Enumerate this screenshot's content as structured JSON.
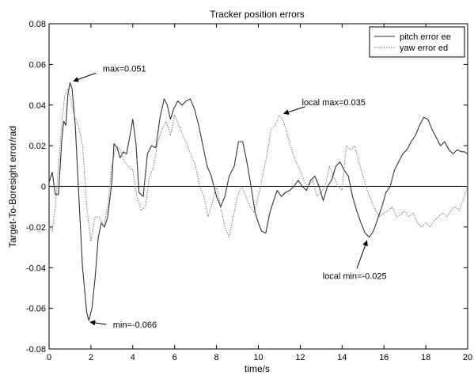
{
  "chart_data": {
    "type": "line",
    "title": "Tracker position errors",
    "xlabel": "time/s",
    "ylabel": "Target-To-Boresight error/rad",
    "xlim": [
      0,
      20
    ],
    "ylim": [
      -0.08,
      0.08
    ],
    "xticks": [
      "0",
      "2",
      "4",
      "6",
      "8",
      "10",
      "12",
      "14",
      "16",
      "18",
      "20"
    ],
    "yticks": [
      "-0.08",
      "-0.06",
      "-0.04",
      "-0.02",
      "0",
      "0.02",
      "0.04",
      "0.06",
      "0.08"
    ],
    "grid": false,
    "zero_line": true,
    "legend_position": "top-right",
    "series": [
      {
        "name": "pitch error ee",
        "style": "solid",
        "color": "#333333",
        "x": [
          0,
          0.15,
          0.3,
          0.45,
          0.6,
          0.7,
          0.8,
          0.9,
          1.0,
          1.1,
          1.25,
          1.4,
          1.6,
          1.8,
          1.9,
          2.05,
          2.2,
          2.35,
          2.5,
          2.65,
          2.8,
          3.0,
          3.1,
          3.25,
          3.4,
          3.55,
          3.7,
          3.85,
          4.0,
          4.15,
          4.3,
          4.5,
          4.7,
          4.9,
          5.1,
          5.3,
          5.5,
          5.65,
          5.8,
          5.95,
          6.15,
          6.35,
          6.55,
          6.75,
          6.95,
          7.15,
          7.35,
          7.55,
          7.75,
          8.0,
          8.2,
          8.4,
          8.6,
          8.85,
          9.05,
          9.25,
          9.45,
          9.65,
          9.85,
          10.0,
          10.15,
          10.35,
          10.55,
          10.7,
          10.9,
          11.1,
          11.3,
          11.5,
          11.7,
          11.9,
          12.1,
          12.3,
          12.5,
          12.7,
          12.9,
          13.1,
          13.3,
          13.5,
          13.7,
          13.9,
          14.1,
          14.3,
          14.5,
          14.7,
          14.9,
          15.1,
          15.3,
          15.5,
          15.7,
          15.9,
          16.1,
          16.3,
          16.5,
          16.7,
          16.9,
          17.1,
          17.3,
          17.5,
          17.7,
          17.9,
          18.1,
          18.3,
          18.5,
          18.7,
          18.9,
          19.1,
          19.3,
          19.5,
          19.7,
          19.85,
          20.0
        ],
        "y": [
          0.002,
          0.007,
          -0.004,
          -0.004,
          0.022,
          0.032,
          0.03,
          0.045,
          0.051,
          0.048,
          0.03,
          0.0,
          -0.04,
          -0.062,
          -0.066,
          -0.06,
          -0.045,
          -0.025,
          -0.018,
          -0.02,
          -0.015,
          0.002,
          0.021,
          0.019,
          0.014,
          0.017,
          0.016,
          0.024,
          0.033,
          0.021,
          -0.003,
          -0.005,
          0.016,
          0.02,
          0.019,
          0.034,
          0.043,
          0.04,
          0.033,
          0.038,
          0.042,
          0.04,
          0.042,
          0.043,
          0.038,
          0.03,
          0.02,
          0.01,
          0.005,
          -0.005,
          -0.01,
          -0.005,
          0.005,
          0.01,
          0.022,
          0.022,
          0.012,
          0.0,
          -0.013,
          -0.018,
          -0.022,
          -0.023,
          -0.013,
          -0.008,
          -0.002,
          -0.005,
          -0.003,
          -0.002,
          0.0,
          0.003,
          0.0,
          -0.002,
          0.003,
          0.005,
          0.0,
          -0.007,
          0.0,
          0.003,
          0.01,
          0.012,
          0.008,
          0.005,
          -0.005,
          -0.012,
          -0.018,
          -0.023,
          -0.025,
          -0.022,
          -0.016,
          -0.01,
          -0.003,
          0.0,
          0.008,
          0.012,
          0.016,
          0.018,
          0.022,
          0.025,
          0.03,
          0.034,
          0.033,
          0.028,
          0.024,
          0.02,
          0.022,
          0.018,
          0.016,
          0.018,
          0.017,
          0.017,
          0.016
        ]
      },
      {
        "name": "yaw error ed",
        "style": "dotted",
        "color": "#777777",
        "x": [
          0,
          0.15,
          0.3,
          0.45,
          0.6,
          0.75,
          0.9,
          1.05,
          1.2,
          1.4,
          1.6,
          1.8,
          2.0,
          2.2,
          2.4,
          2.6,
          2.8,
          3.0,
          3.2,
          3.4,
          3.6,
          3.8,
          4.0,
          4.2,
          4.4,
          4.6,
          4.8,
          5.0,
          5.2,
          5.4,
          5.6,
          5.8,
          6.0,
          6.2,
          6.4,
          6.6,
          6.8,
          7.0,
          7.2,
          7.4,
          7.6,
          7.8,
          8.0,
          8.2,
          8.4,
          8.6,
          8.8,
          9.0,
          9.2,
          9.4,
          9.6,
          9.8,
          10.0,
          10.2,
          10.4,
          10.6,
          10.8,
          11.0,
          11.2,
          11.4,
          11.6,
          11.8,
          12.0,
          12.2,
          12.4,
          12.6,
          12.8,
          13.0,
          13.2,
          13.4,
          13.6,
          13.8,
          14.0,
          14.2,
          14.4,
          14.6,
          14.8,
          15.0,
          15.2,
          15.4,
          15.6,
          15.8,
          16.0,
          16.2,
          16.4,
          16.6,
          16.8,
          17.0,
          17.2,
          17.4,
          17.6,
          17.8,
          18.0,
          18.2,
          18.4,
          18.6,
          18.8,
          19.0,
          19.2,
          19.4,
          19.6,
          19.8,
          20.0
        ],
        "y": [
          -0.02,
          -0.022,
          -0.01,
          0.01,
          0.03,
          0.045,
          0.048,
          0.042,
          0.035,
          0.03,
          0.02,
          -0.01,
          -0.027,
          -0.015,
          -0.015,
          -0.02,
          -0.01,
          0.01,
          0.02,
          0.018,
          0.012,
          0.01,
          0.008,
          -0.005,
          -0.012,
          -0.01,
          0.005,
          0.01,
          0.022,
          0.028,
          0.032,
          0.025,
          0.035,
          0.03,
          0.025,
          0.02,
          0.015,
          0.01,
          0.0,
          -0.005,
          -0.015,
          -0.008,
          0.0,
          -0.01,
          -0.02,
          -0.025,
          -0.015,
          -0.005,
          0.0,
          -0.005,
          -0.01,
          -0.013,
          -0.005,
          0.005,
          0.015,
          0.028,
          0.03,
          0.035,
          0.032,
          0.025,
          0.018,
          0.012,
          0.008,
          0.002,
          0.0,
          0.003,
          -0.005,
          -0.003,
          0.0,
          0.01,
          0.005,
          0.0,
          -0.002,
          0.02,
          0.018,
          0.02,
          0.012,
          0.005,
          -0.002,
          -0.007,
          -0.012,
          -0.015,
          -0.013,
          -0.012,
          -0.01,
          -0.015,
          -0.014,
          -0.012,
          -0.015,
          -0.013,
          -0.018,
          -0.02,
          -0.018,
          -0.02,
          -0.017,
          -0.015,
          -0.013,
          -0.015,
          -0.012,
          -0.01,
          -0.012,
          -0.006,
          0.0
        ]
      }
    ],
    "annotations": [
      {
        "text": "max=0.051",
        "point": [
          1.05,
          0.051
        ],
        "text_at": [
          3.6,
          0.0565
        ]
      },
      {
        "text": "local max=0.035",
        "point": [
          11.1,
          0.035
        ],
        "text_at": [
          13.6,
          0.04
        ]
      },
      {
        "text": "min=-0.066",
        "point": [
          1.85,
          -0.066
        ],
        "text_at": [
          4.1,
          -0.0695
        ]
      },
      {
        "text": "local min=-0.025",
        "point": [
          15.3,
          -0.026
        ],
        "text_at": [
          14.6,
          -0.0455
        ]
      }
    ]
  }
}
